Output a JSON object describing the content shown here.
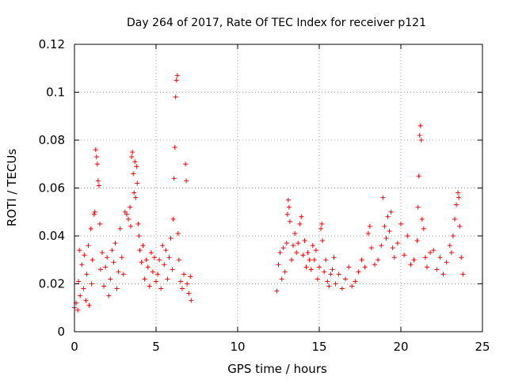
{
  "chart_data": {
    "type": "scatter",
    "title": "Day 264 of 2017, Rate Of TEC Index for receiver p121",
    "xlabel": "GPS time / hours",
    "ylabel": "ROTI / TECUs",
    "xlim": [
      0,
      25
    ],
    "ylim": [
      0,
      0.12
    ],
    "x_ticks": [
      "0",
      "5",
      "10",
      "15",
      "20",
      "25"
    ],
    "y_ticks": [
      "0",
      "0.02",
      "0.04",
      "0.06",
      "0.08",
      "0.1",
      "0.12"
    ],
    "grid": true,
    "marker": "+",
    "series_color": "#ff0000",
    "points": [
      [
        0.0,
        0.01
      ],
      [
        0.1,
        0.012
      ],
      [
        0.2,
        0.009
      ],
      [
        0.25,
        0.021
      ],
      [
        0.3,
        0.034
      ],
      [
        0.35,
        0.015
      ],
      [
        0.45,
        0.028
      ],
      [
        0.55,
        0.018
      ],
      [
        0.6,
        0.032
      ],
      [
        0.7,
        0.013
      ],
      [
        0.75,
        0.024
      ],
      [
        0.85,
        0.036
      ],
      [
        0.9,
        0.011
      ],
      [
        1.0,
        0.043
      ],
      [
        1.05,
        0.02
      ],
      [
        1.1,
        0.03
      ],
      [
        1.2,
        0.049
      ],
      [
        1.25,
        0.05
      ],
      [
        1.3,
        0.076
      ],
      [
        1.35,
        0.073
      ],
      [
        1.4,
        0.07
      ],
      [
        1.45,
        0.063
      ],
      [
        1.5,
        0.061
      ],
      [
        1.55,
        0.045
      ],
      [
        1.6,
        0.026
      ],
      [
        1.7,
        0.033
      ],
      [
        1.8,
        0.019
      ],
      [
        1.9,
        0.027
      ],
      [
        2.0,
        0.031
      ],
      [
        2.1,
        0.015
      ],
      [
        2.2,
        0.022
      ],
      [
        2.3,
        0.034
      ],
      [
        2.4,
        0.029
      ],
      [
        2.5,
        0.037
      ],
      [
        2.6,
        0.018
      ],
      [
        2.7,
        0.025
      ],
      [
        2.8,
        0.043
      ],
      [
        2.9,
        0.031
      ],
      [
        3.0,
        0.024
      ],
      [
        3.1,
        0.05
      ],
      [
        3.2,
        0.049
      ],
      [
        3.3,
        0.047
      ],
      [
        3.4,
        0.052
      ],
      [
        3.45,
        0.044
      ],
      [
        3.5,
        0.073
      ],
      [
        3.55,
        0.075
      ],
      [
        3.6,
        0.066
      ],
      [
        3.65,
        0.058
      ],
      [
        3.7,
        0.071
      ],
      [
        3.75,
        0.056
      ],
      [
        3.8,
        0.069
      ],
      [
        3.85,
        0.062
      ],
      [
        3.9,
        0.045
      ],
      [
        3.95,
        0.04
      ],
      [
        4.0,
        0.034
      ],
      [
        4.1,
        0.029
      ],
      [
        4.2,
        0.036
      ],
      [
        4.3,
        0.022
      ],
      [
        4.4,
        0.03
      ],
      [
        4.5,
        0.027
      ],
      [
        4.6,
        0.019
      ],
      [
        4.7,
        0.033
      ],
      [
        4.8,
        0.025
      ],
      [
        4.9,
        0.031
      ],
      [
        5.0,
        0.021
      ],
      [
        5.1,
        0.024
      ],
      [
        5.2,
        0.03
      ],
      [
        5.3,
        0.018
      ],
      [
        5.4,
        0.036
      ],
      [
        5.5,
        0.028
      ],
      [
        5.6,
        0.034
      ],
      [
        5.7,
        0.022
      ],
      [
        5.8,
        0.031
      ],
      [
        5.9,
        0.039
      ],
      [
        6.0,
        0.026
      ],
      [
        6.05,
        0.047
      ],
      [
        6.1,
        0.064
      ],
      [
        6.15,
        0.077
      ],
      [
        6.2,
        0.098
      ],
      [
        6.25,
        0.105
      ],
      [
        6.3,
        0.107
      ],
      [
        6.35,
        0.041
      ],
      [
        6.4,
        0.03
      ],
      [
        6.5,
        0.021
      ],
      [
        6.6,
        0.018
      ],
      [
        6.7,
        0.024
      ],
      [
        6.8,
        0.07
      ],
      [
        6.85,
        0.063
      ],
      [
        6.9,
        0.02
      ],
      [
        7.0,
        0.016
      ],
      [
        7.1,
        0.023
      ],
      [
        7.15,
        0.013
      ],
      [
        12.4,
        0.017
      ],
      [
        12.5,
        0.028
      ],
      [
        12.6,
        0.033
      ],
      [
        12.7,
        0.022
      ],
      [
        12.8,
        0.035
      ],
      [
        12.9,
        0.025
      ],
      [
        13.0,
        0.037
      ],
      [
        13.05,
        0.049
      ],
      [
        13.1,
        0.055
      ],
      [
        13.15,
        0.052
      ],
      [
        13.2,
        0.046
      ],
      [
        13.3,
        0.03
      ],
      [
        13.4,
        0.036
      ],
      [
        13.5,
        0.041
      ],
      [
        13.6,
        0.033
      ],
      [
        13.7,
        0.037
      ],
      [
        13.8,
        0.045
      ],
      [
        13.9,
        0.048
      ],
      [
        14.0,
        0.032
      ],
      [
        14.1,
        0.038
      ],
      [
        14.2,
        0.027
      ],
      [
        14.3,
        0.033
      ],
      [
        14.4,
        0.03
      ],
      [
        14.5,
        0.026
      ],
      [
        14.6,
        0.036
      ],
      [
        14.7,
        0.03
      ],
      [
        14.8,
        0.034
      ],
      [
        14.9,
        0.022
      ],
      [
        15.0,
        0.027
      ],
      [
        15.1,
        0.043
      ],
      [
        15.15,
        0.045
      ],
      [
        15.2,
        0.038
      ],
      [
        15.3,
        0.025
      ],
      [
        15.4,
        0.03
      ],
      [
        15.5,
        0.021
      ],
      [
        15.6,
        0.019
      ],
      [
        15.7,
        0.024
      ],
      [
        15.8,
        0.026
      ],
      [
        15.9,
        0.031
      ],
      [
        16.0,
        0.02
      ],
      [
        16.2,
        0.024
      ],
      [
        16.4,
        0.018
      ],
      [
        16.6,
        0.022
      ],
      [
        16.8,
        0.027
      ],
      [
        17.0,
        0.019
      ],
      [
        17.2,
        0.021
      ],
      [
        17.4,
        0.025
      ],
      [
        17.6,
        0.03
      ],
      [
        17.8,
        0.027
      ],
      [
        18.0,
        0.041
      ],
      [
        18.1,
        0.044
      ],
      [
        18.2,
        0.035
      ],
      [
        18.4,
        0.028
      ],
      [
        18.6,
        0.03
      ],
      [
        18.8,
        0.036
      ],
      [
        18.9,
        0.056
      ],
      [
        19.0,
        0.044
      ],
      [
        19.1,
        0.039
      ],
      [
        19.2,
        0.048
      ],
      [
        19.3,
        0.042
      ],
      [
        19.4,
        0.05
      ],
      [
        19.5,
        0.035
      ],
      [
        19.6,
        0.031
      ],
      [
        19.8,
        0.037
      ],
      [
        20.0,
        0.045
      ],
      [
        20.2,
        0.032
      ],
      [
        20.4,
        0.04
      ],
      [
        20.6,
        0.028
      ],
      [
        20.8,
        0.03
      ],
      [
        21.0,
        0.038
      ],
      [
        21.05,
        0.052
      ],
      [
        21.1,
        0.065
      ],
      [
        21.15,
        0.082
      ],
      [
        21.2,
        0.086
      ],
      [
        21.25,
        0.08
      ],
      [
        21.3,
        0.047
      ],
      [
        21.4,
        0.043
      ],
      [
        21.5,
        0.031
      ],
      [
        21.6,
        0.027
      ],
      [
        21.8,
        0.033
      ],
      [
        22.0,
        0.034
      ],
      [
        22.2,
        0.026
      ],
      [
        22.4,
        0.031
      ],
      [
        22.6,
        0.024
      ],
      [
        22.8,
        0.029
      ],
      [
        23.0,
        0.036
      ],
      [
        23.1,
        0.033
      ],
      [
        23.2,
        0.04
      ],
      [
        23.3,
        0.047
      ],
      [
        23.4,
        0.053
      ],
      [
        23.5,
        0.058
      ],
      [
        23.55,
        0.056
      ],
      [
        23.6,
        0.044
      ],
      [
        23.7,
        0.031
      ],
      [
        23.8,
        0.024
      ]
    ]
  }
}
